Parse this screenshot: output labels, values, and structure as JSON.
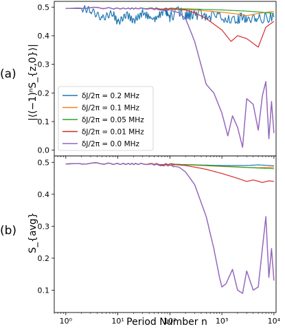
{
  "chart_data": [
    {
      "type": "line",
      "panel_label": "(a)",
      "ylabel": "|⟨(−1)ⁿS_{z,0}⟩|",
      "xlabel": "",
      "xscale": "log",
      "xlim": [
        0.6,
        11000
      ],
      "ylim": [
        -0.02,
        0.52
      ],
      "yticks": [
        "0.0",
        "0.1",
        "0.2",
        "0.3",
        "0.4",
        "0.5"
      ],
      "ytick_values": [
        0.0,
        0.1,
        0.2,
        0.3,
        0.4,
        0.5
      ],
      "legend": "lower-left",
      "grid": false,
      "series": [
        {
          "name": "δJ/2π = 0.2 MHz",
          "color": "#1f77b4",
          "x": [
            1,
            2,
            3,
            5,
            8,
            10,
            15,
            20,
            30,
            50,
            80,
            100,
            150,
            200,
            300,
            500,
            1000,
            2000,
            3000,
            5000,
            10000
          ],
          "values": [
            0.495,
            0.495,
            0.49,
            0.46,
            0.48,
            0.445,
            0.475,
            0.45,
            0.48,
            0.455,
            0.49,
            0.465,
            0.485,
            0.47,
            0.475,
            0.47,
            0.465,
            0.46,
            0.465,
            0.46,
            0.465
          ]
        },
        {
          "name": "δJ/2π = 0.1 MHz",
          "color": "#ff7f0e",
          "x": [
            1,
            3,
            10,
            30,
            100,
            300,
            1000,
            2000,
            3000,
            5000,
            10000
          ],
          "values": [
            0.495,
            0.498,
            0.495,
            0.495,
            0.494,
            0.49,
            0.482,
            0.476,
            0.47,
            0.478,
            0.485
          ]
        },
        {
          "name": "δJ/2π = 0.05 MHz",
          "color": "#2ca02c",
          "x": [
            1,
            3,
            10,
            30,
            100,
            300,
            1000,
            3000,
            5000,
            10000
          ],
          "values": [
            0.495,
            0.498,
            0.495,
            0.496,
            0.495,
            0.493,
            0.49,
            0.486,
            0.483,
            0.478
          ]
        },
        {
          "name": "δJ/2π = 0.01 MHz",
          "color": "#d62728",
          "x": [
            1,
            3,
            10,
            30,
            100,
            200,
            300,
            500,
            1000,
            1500,
            2000,
            3000,
            5000,
            7000,
            10000
          ],
          "values": [
            0.495,
            0.498,
            0.495,
            0.495,
            0.494,
            0.49,
            0.48,
            0.46,
            0.42,
            0.38,
            0.4,
            0.39,
            0.36,
            0.43,
            0.45
          ]
        },
        {
          "name": "δJ/2π = 0.0 MHz",
          "color": "#9467bd",
          "x": [
            1,
            3,
            10,
            30,
            100,
            150,
            200,
            300,
            500,
            700,
            1000,
            1300,
            1600,
            2000,
            2500,
            3000,
            4000,
            5000,
            6000,
            7000,
            8000,
            9000,
            10000
          ],
          "values": [
            0.495,
            0.498,
            0.495,
            0.495,
            0.49,
            0.48,
            0.46,
            0.38,
            0.23,
            0.2,
            0.13,
            0.05,
            0.12,
            0.08,
            0.01,
            0.18,
            0.16,
            0.07,
            0.19,
            0.24,
            0.04,
            0.17,
            0.06
          ]
        }
      ]
    },
    {
      "type": "line",
      "panel_label": "(b)",
      "ylabel": "S_{avg}",
      "xlabel": "Period Number n",
      "xscale": "log",
      "xlim": [
        0.6,
        11000
      ],
      "ylim": [
        0.03,
        0.52
      ],
      "xticks": [
        "10⁰",
        "10¹",
        "10²",
        "10³",
        "10⁴"
      ],
      "xtick_values": [
        1,
        10,
        100,
        1000,
        10000
      ],
      "yticks": [
        "0.1",
        "0.2",
        "0.3",
        "0.4",
        "0.5"
      ],
      "ytick_values": [
        0.1,
        0.2,
        0.3,
        0.4,
        0.5
      ],
      "grid": false,
      "series": [
        {
          "name": "δJ/2π = 0.2 MHz",
          "color": "#1f77b4",
          "x": [
            1,
            3,
            10,
            30,
            100,
            300,
            1000,
            3000,
            5000,
            10000
          ],
          "values": [
            0.495,
            0.497,
            0.495,
            0.495,
            0.494,
            0.492,
            0.49,
            0.49,
            0.492,
            0.489
          ]
        },
        {
          "name": "δJ/2π = 0.1 MHz",
          "color": "#ff7f0e",
          "x": [
            1,
            3,
            10,
            30,
            100,
            300,
            1000,
            3000,
            5000,
            10000
          ],
          "values": [
            0.495,
            0.497,
            0.495,
            0.495,
            0.494,
            0.491,
            0.487,
            0.484,
            0.483,
            0.485
          ]
        },
        {
          "name": "δJ/2π = 0.05 MHz",
          "color": "#2ca02c",
          "x": [
            1,
            3,
            10,
            30,
            100,
            300,
            1000,
            3000,
            5000,
            10000
          ],
          "values": [
            0.495,
            0.497,
            0.495,
            0.495,
            0.494,
            0.492,
            0.488,
            0.484,
            0.482,
            0.48
          ]
        },
        {
          "name": "δJ/2π = 0.01 MHz",
          "color": "#d62728",
          "x": [
            1,
            3,
            10,
            30,
            100,
            200,
            300,
            500,
            1000,
            2000,
            3000,
            4000,
            6000,
            8000,
            10000
          ],
          "values": [
            0.495,
            0.497,
            0.495,
            0.495,
            0.494,
            0.49,
            0.485,
            0.478,
            0.465,
            0.45,
            0.44,
            0.445,
            0.437,
            0.442,
            0.44
          ]
        },
        {
          "name": "δJ/2π = 0.0 MHz",
          "color": "#9467bd",
          "x": [
            1,
            3,
            10,
            30,
            100,
            150,
            200,
            300,
            500,
            700,
            900,
            1000,
            1200,
            1600,
            2000,
            2500,
            3000,
            4000,
            5000,
            6000,
            7000,
            8000,
            9000,
            10000
          ],
          "values": [
            0.495,
            0.497,
            0.495,
            0.495,
            0.49,
            0.485,
            0.47,
            0.43,
            0.33,
            0.23,
            0.14,
            0.11,
            0.12,
            0.165,
            0.1,
            0.09,
            0.16,
            0.1,
            0.11,
            0.23,
            0.33,
            0.14,
            0.23,
            0.13
          ]
        }
      ]
    }
  ]
}
